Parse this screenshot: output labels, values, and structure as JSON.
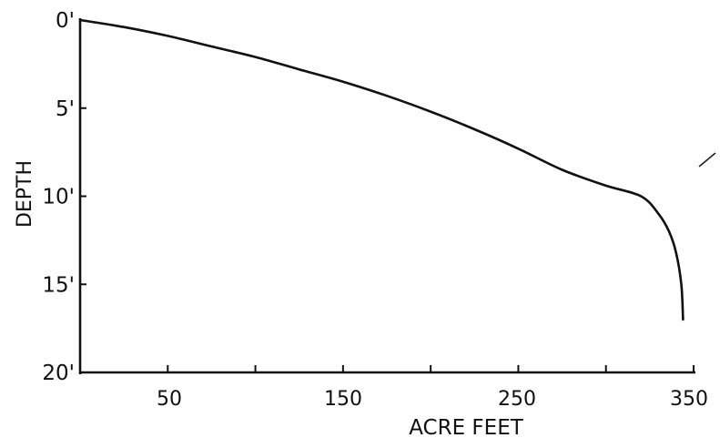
{
  "chart_data": {
    "type": "line",
    "title": "",
    "xlabel": "ACRE FEET",
    "ylabel": "DEPTH",
    "xlim": [
      0,
      350
    ],
    "ylim": [
      0,
      20
    ],
    "y_inverted": true,
    "x_ticks": [
      {
        "value": 50,
        "label": "50"
      },
      {
        "value": 100,
        "label": ""
      },
      {
        "value": 150,
        "label": "150"
      },
      {
        "value": 200,
        "label": ""
      },
      {
        "value": 250,
        "label": "250"
      },
      {
        "value": 300,
        "label": ""
      },
      {
        "value": 350,
        "label": "350"
      }
    ],
    "y_ticks": [
      {
        "value": 0,
        "label": "0'"
      },
      {
        "value": 5,
        "label": "5'"
      },
      {
        "value": 10,
        "label": "10'"
      },
      {
        "value": 15,
        "label": "15'"
      },
      {
        "value": 20,
        "label": "20'"
      }
    ],
    "grid": false,
    "legend": "none",
    "line_color": "#111111",
    "series": [
      {
        "x": [
          0,
          25,
          50,
          75,
          100,
          125,
          150,
          175,
          200,
          225,
          250,
          275,
          300,
          320,
          330,
          336,
          340,
          343,
          344
        ],
        "y": [
          0,
          0.4,
          0.9,
          1.5,
          2.1,
          2.8,
          3.5,
          4.3,
          5.2,
          6.2,
          7.3,
          8.5,
          9.4,
          10.0,
          11.0,
          12.0,
          13.2,
          15.0,
          17.0
        ]
      }
    ]
  }
}
